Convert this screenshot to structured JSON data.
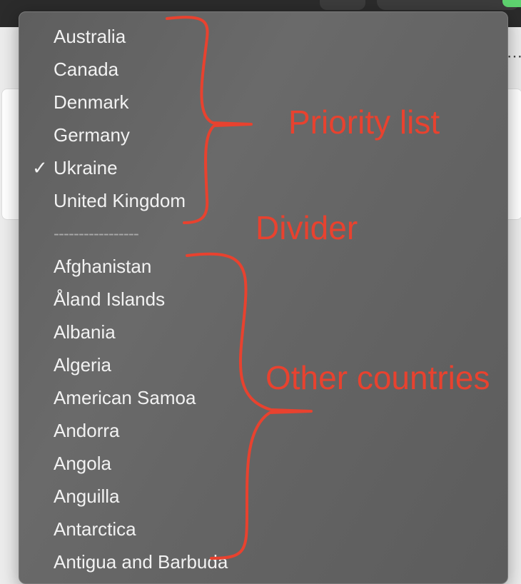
{
  "menu": {
    "priority_items": [
      {
        "label": "Australia",
        "checked": false
      },
      {
        "label": "Canada",
        "checked": false
      },
      {
        "label": "Denmark",
        "checked": false
      },
      {
        "label": "Germany",
        "checked": false
      },
      {
        "label": "Ukraine",
        "checked": true
      },
      {
        "label": "United Kingdom",
        "checked": false
      }
    ],
    "checkmark": "✓",
    "divider_text": "-----------------",
    "other_items": [
      "Afghanistan",
      "Åland Islands",
      "Albania",
      "Algeria",
      "American Samoa",
      "Andorra",
      "Angola",
      "Anguilla",
      "Antarctica",
      "Antigua and Barbuda"
    ]
  },
  "annotations": {
    "priority": "Priority list",
    "divider": "Divider",
    "other": "Other countries"
  },
  "background": {
    "more_icon": "more-horizontal-icon"
  },
  "colors": {
    "annotation": "#e8422f",
    "menu_background": "#636363",
    "menu_text": "#f2f2f2",
    "divider_text": "#a9a9a9"
  }
}
